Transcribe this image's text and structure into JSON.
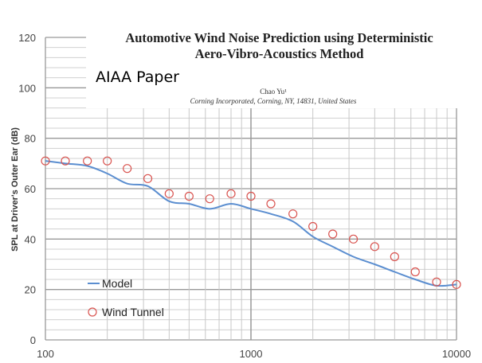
{
  "paper": {
    "title_line1": "Automotive Wind Noise Prediction using Deterministic",
    "title_line2": "Aero-Vibro-Acoustics Method",
    "overlay_label": "AIAA Paper",
    "author": "Chao Yu¹",
    "affiliation": "Corning Incorporated, Corning, NY, 14831, United States"
  },
  "chart_data": {
    "type": "line",
    "title": "",
    "xlabel": "",
    "ylabel": "SPL at Driver's Outer Ear (dB)",
    "xscale": "log",
    "xlim": [
      100,
      10000
    ],
    "ylim": [
      0,
      120
    ],
    "xticks": [
      "100",
      "1000",
      "10000"
    ],
    "yticks": [
      "0",
      "20",
      "40",
      "60",
      "80",
      "100",
      "120"
    ],
    "grid": true,
    "legend": "bottom-left",
    "x": [
      100,
      125,
      160,
      200,
      250,
      315,
      400,
      500,
      630,
      800,
      1000,
      1250,
      1600,
      2000,
      2500,
      3150,
      4000,
      5000,
      6300,
      8000,
      10000
    ],
    "series": [
      {
        "name": "Model",
        "style": "line",
        "color": "#5b8ed0",
        "values": [
          71,
          70,
          69,
          66,
          62,
          61,
          55,
          54,
          52,
          54,
          52,
          50,
          47,
          41,
          37,
          33,
          30,
          27,
          24,
          21.5,
          22
        ]
      },
      {
        "name": "Wind Tunnel",
        "style": "markers",
        "color": "#d9534f",
        "values": [
          71,
          71,
          71,
          71,
          68,
          64,
          58,
          57,
          56,
          58,
          57,
          54,
          50,
          45,
          42,
          40,
          37,
          33,
          27,
          23,
          22
        ]
      }
    ]
  }
}
